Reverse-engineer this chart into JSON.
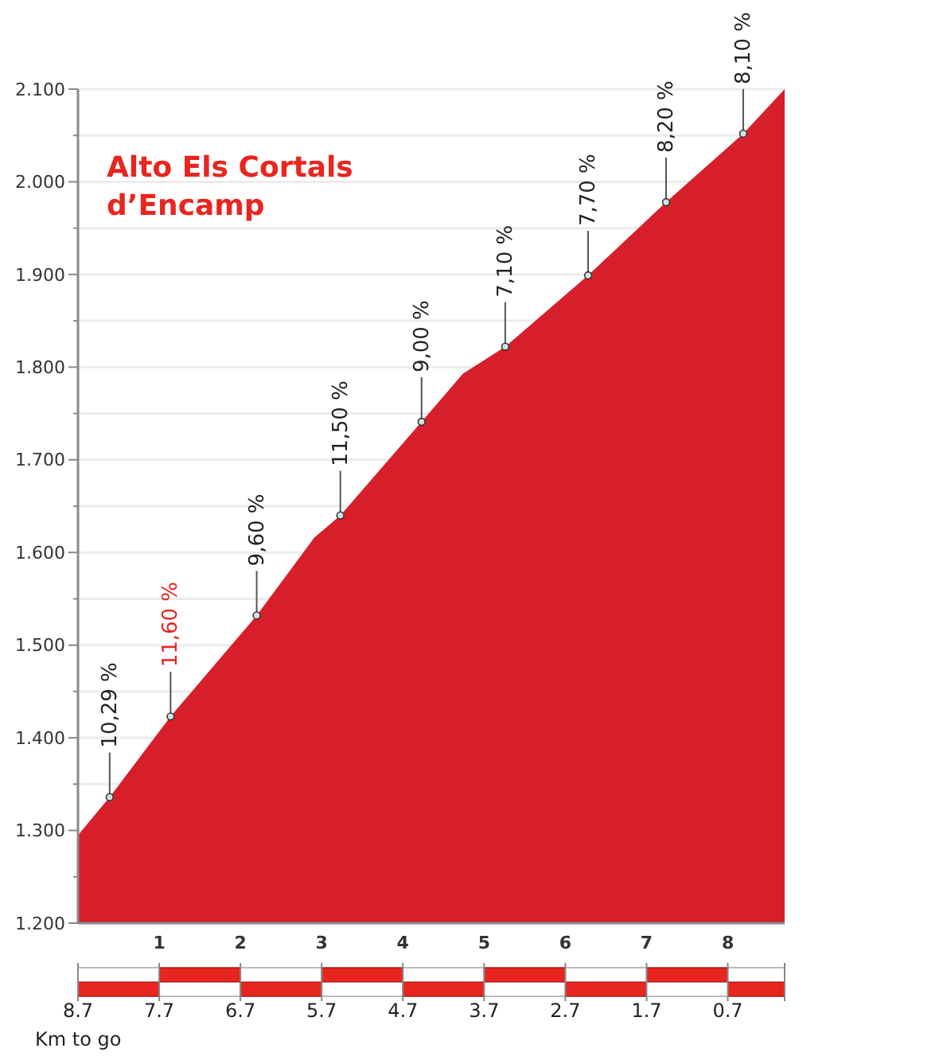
{
  "chart_data": {
    "type": "area",
    "title": "Alto Els Cortals d’Encamp",
    "color": "#d71f2b",
    "x": [
      0,
      0.39,
      1.14,
      2.2,
      2.91,
      3.23,
      4.23,
      4.74,
      5.26,
      6.28,
      7.24,
      8.19,
      8.7
    ],
    "values": [
      1.295,
      1.336,
      1.423,
      1.532,
      1.616,
      1.64,
      1.741,
      1.793,
      1.822,
      1.899,
      1.978,
      2.052,
      2.1
    ],
    "xlim": [
      0,
      8.7
    ],
    "xticks": [
      1,
      2,
      3,
      4,
      5,
      6,
      7,
      8
    ],
    "x2lim": [
      8.7,
      0
    ],
    "x2label": "Km to go",
    "x2ticks": [
      8.7,
      7.7,
      6.7,
      5.7,
      4.7,
      3.7,
      2.7,
      1.7,
      0.7
    ],
    "ylim": [
      1.2,
      2.1
    ],
    "yticks": [
      {
        "value": 1.2,
        "label": "1.200"
      },
      {
        "value": 1.25,
        "label": null
      },
      {
        "value": 1.3,
        "label": "1.300"
      },
      {
        "value": 1.35,
        "label": null
      },
      {
        "value": 1.4,
        "label": "1.400"
      },
      {
        "value": 1.45,
        "label": null
      },
      {
        "value": 1.5,
        "label": "1.500"
      },
      {
        "value": 1.55,
        "label": null
      },
      {
        "value": 1.6,
        "label": "1.600"
      },
      {
        "value": 1.65,
        "label": null
      },
      {
        "value": 1.7,
        "label": "1.700"
      },
      {
        "value": 1.75,
        "label": null
      },
      {
        "value": 1.8,
        "label": "1.800"
      },
      {
        "value": 1.85,
        "label": null
      },
      {
        "value": 1.9,
        "label": "1.900"
      },
      {
        "value": 1.95,
        "label": null
      },
      {
        "value": 2.0,
        "label": "2.000"
      },
      {
        "value": 2.05,
        "label": null
      },
      {
        "value": 2.1,
        "label": "2.100"
      }
    ],
    "grid": "y",
    "annotations": [
      {
        "text": "10,29 %",
        "x": 0.39,
        "y": 1.336
      },
      {
        "text": "11,60 %",
        "x": 1.14,
        "y": 1.423
      },
      {
        "text": "9,60 %",
        "x": 2.2,
        "y": 1.532
      },
      {
        "text": "11,50 %",
        "x": 3.23,
        "y": 1.64
      },
      {
        "text": "9,00 %",
        "x": 4.23,
        "y": 1.741
      },
      {
        "text": "7,10 %",
        "x": 5.26,
        "y": 1.822
      },
      {
        "text": "7,70 %",
        "x": 6.28,
        "y": 1.899
      },
      {
        "text": "8,20 %",
        "x": 7.24,
        "y": 1.978
      },
      {
        "text": "8,10 %",
        "x": 8.19,
        "y": 2.052
      }
    ]
  }
}
